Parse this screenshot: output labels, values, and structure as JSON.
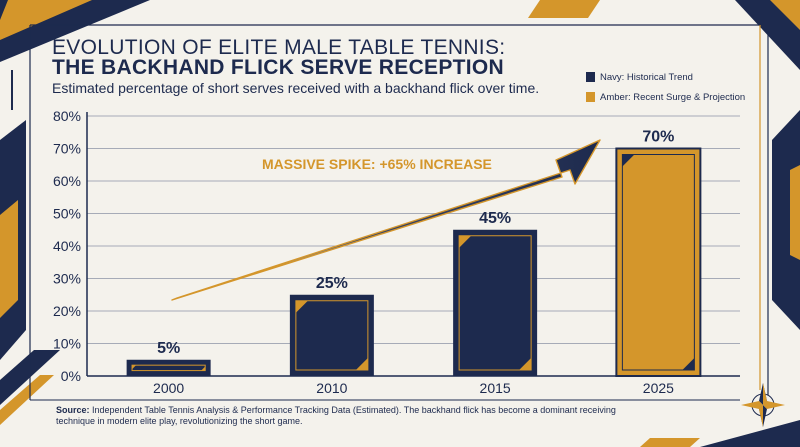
{
  "title_line1": "EVOLUTION OF ELITE MALE TABLE TENNIS:",
  "title_line2": "THE BACKHAND FLICK SERVE RECEPTION",
  "subtitle": "Estimated percentage of short serves received with a backhand flick over time.",
  "legend": [
    {
      "label": "Navy: Historical Trend",
      "color": "#1d2a4e"
    },
    {
      "label": "Amber: Recent Surge & Projection",
      "color": "#d4962b"
    }
  ],
  "annotation": "MASSIVE SPIKE: +65% INCREASE",
  "source_label": "Source:",
  "source_text": "Independent Table Tennis Analysis & Performance Tracking Data (Estimated). The backhand flick has become a dominant receiving technique in modern elite play, revolutionizing the short game.",
  "colors": {
    "navy": "#1d2a4e",
    "amber": "#d4962b",
    "background": "#f4f2ec"
  },
  "chart_data": {
    "type": "bar",
    "title": "EVOLUTION OF ELITE MALE TABLE TENNIS: THE BACKHAND FLICK SERVE RECEPTION",
    "categories": [
      "2000",
      "2010",
      "2015",
      "2025"
    ],
    "values": [
      5,
      25,
      45,
      70
    ],
    "value_labels": [
      "5%",
      "25%",
      "45%",
      "70%"
    ],
    "bar_colors": [
      "#1d2a4e",
      "#1d2a4e",
      "#1d2a4e",
      "#d4962b"
    ],
    "ylim": [
      0,
      80
    ],
    "yticks": [
      0,
      10,
      20,
      30,
      40,
      50,
      60,
      70,
      80
    ],
    "ytick_labels": [
      "0%",
      "10%",
      "20%",
      "30%",
      "40%",
      "50%",
      "60%",
      "70%",
      "80%"
    ],
    "xlabel": "",
    "ylabel": "",
    "grid": true,
    "legend_position": "top-right"
  }
}
